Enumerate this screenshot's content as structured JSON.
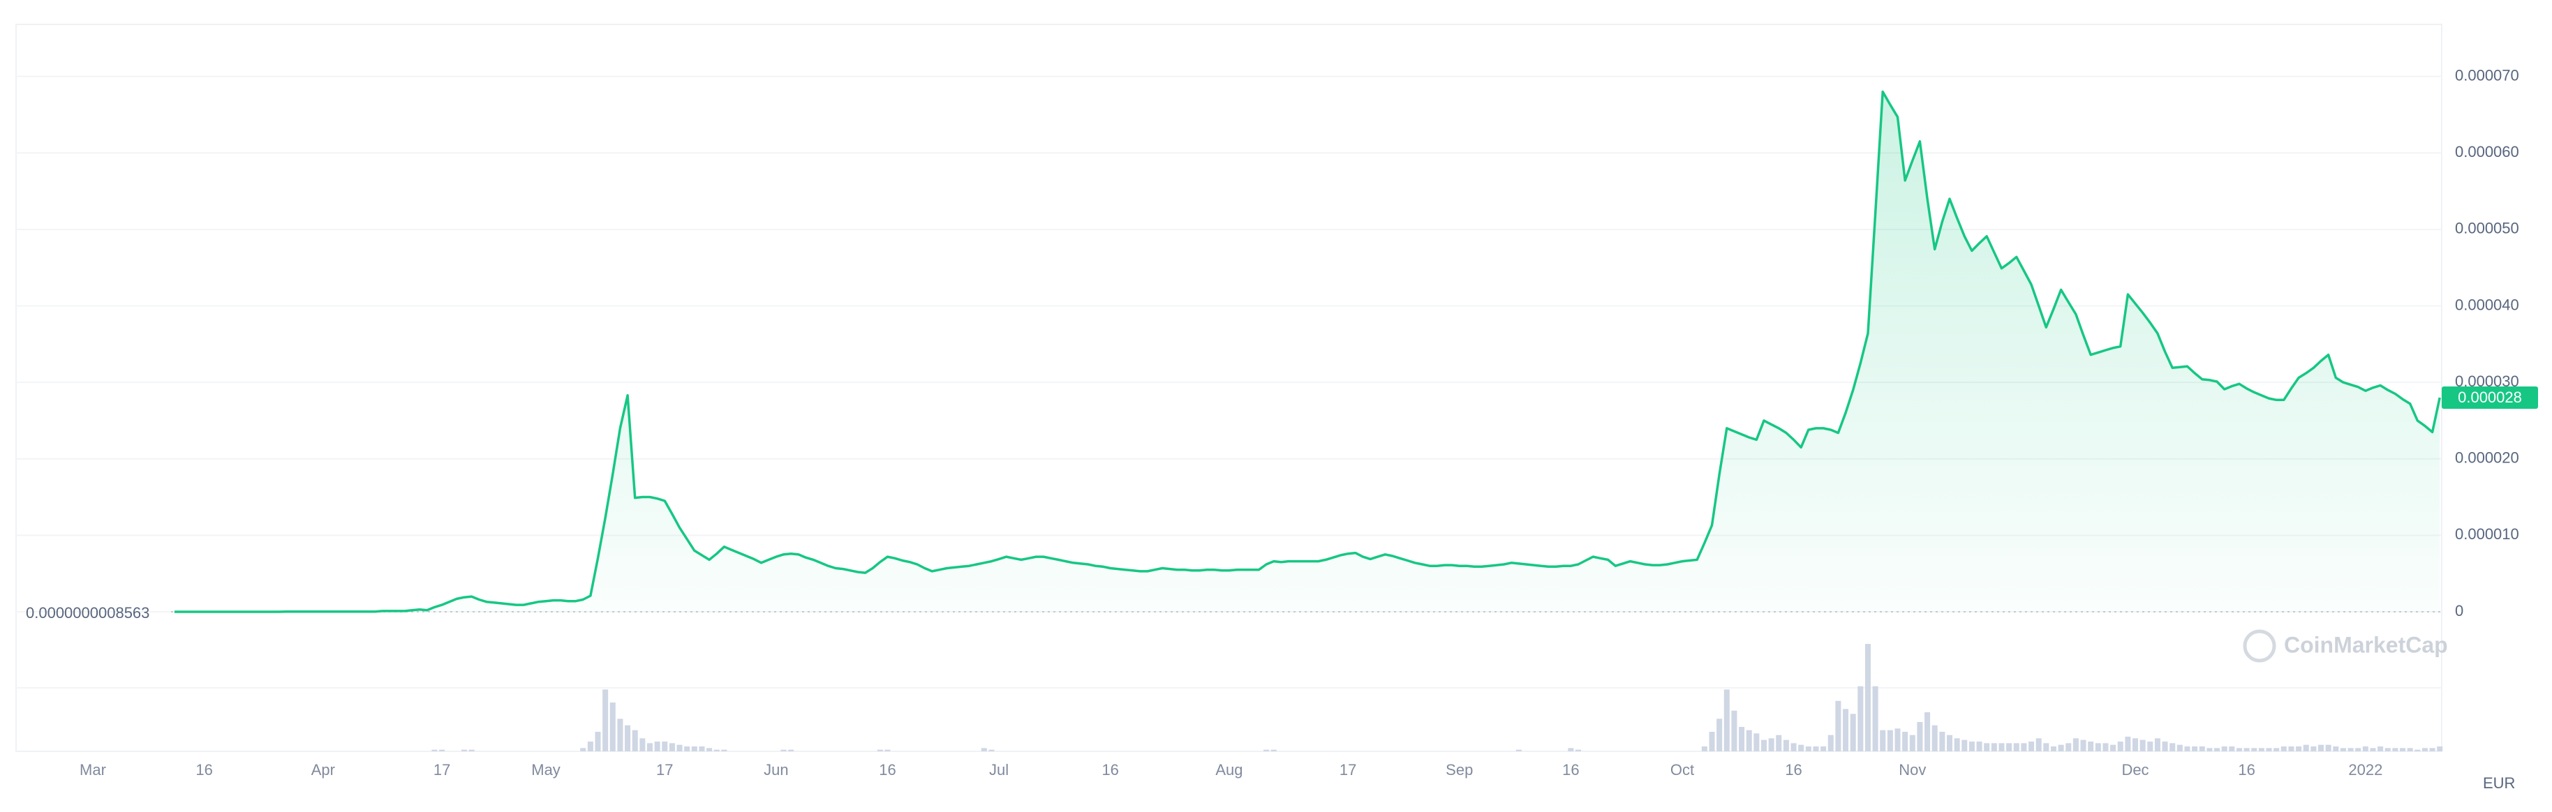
{
  "chart_data": {
    "type": "line",
    "categories": [
      "Mar",
      null,
      null,
      null,
      null,
      null,
      null,
      null,
      null,
      null,
      null,
      null,
      null,
      null,
      null,
      "16",
      null,
      null,
      null,
      null,
      null,
      null,
      null,
      null,
      null,
      null,
      null,
      null,
      null,
      null,
      null,
      "Apr",
      null,
      null,
      null,
      null,
      null,
      null,
      null,
      null,
      null,
      null,
      null,
      null,
      null,
      null,
      null,
      "17",
      null,
      null,
      null,
      null,
      null,
      null,
      null,
      null,
      null,
      null,
      null,
      null,
      null,
      "May",
      null,
      null,
      null,
      null,
      null,
      null,
      null,
      null,
      null,
      null,
      null,
      null,
      null,
      null,
      null,
      "17",
      null,
      null,
      null,
      null,
      null,
      null,
      null,
      null,
      null,
      null,
      null,
      null,
      null,
      null,
      "Jun",
      null,
      null,
      null,
      null,
      null,
      null,
      null,
      null,
      null,
      null,
      null,
      null,
      null,
      null,
      "16",
      null,
      null,
      null,
      null,
      null,
      null,
      null,
      null,
      null,
      null,
      null,
      null,
      null,
      null,
      "Jul",
      null,
      null,
      null,
      null,
      null,
      null,
      null,
      null,
      null,
      null,
      null,
      null,
      null,
      null,
      "16",
      null,
      null,
      null,
      null,
      null,
      null,
      null,
      null,
      null,
      null,
      null,
      null,
      null,
      null,
      null,
      "Aug",
      null,
      null,
      null,
      null,
      null,
      null,
      null,
      null,
      null,
      null,
      null,
      null,
      null,
      null,
      null,
      "17",
      null,
      null,
      null,
      null,
      null,
      null,
      null,
      null,
      null,
      null,
      null,
      null,
      null,
      null,
      "Sep",
      null,
      null,
      null,
      null,
      null,
      null,
      null,
      null,
      null,
      null,
      null,
      null,
      null,
      null,
      "16",
      null,
      null,
      null,
      null,
      null,
      null,
      null,
      null,
      null,
      null,
      null,
      null,
      null,
      null,
      "Oct",
      null,
      null,
      null,
      null,
      null,
      null,
      null,
      null,
      null,
      null,
      null,
      null,
      null,
      null,
      "16",
      null,
      null,
      null,
      null,
      null,
      null,
      null,
      null,
      null,
      null,
      null,
      null,
      null,
      null,
      null,
      "Nov",
      null,
      null,
      null,
      null,
      null,
      null,
      null,
      null,
      null,
      null,
      null,
      null,
      null,
      null,
      null,
      null,
      null,
      null,
      null,
      null,
      null,
      null,
      null,
      null,
      null,
      null,
      null,
      null,
      null,
      "Dec",
      null,
      null,
      null,
      null,
      null,
      null,
      null,
      null,
      null,
      null,
      null,
      null,
      null,
      null,
      "16",
      null,
      null,
      null,
      null,
      null,
      null,
      null,
      null,
      null,
      null,
      null,
      null,
      null,
      null,
      null,
      "2022",
      null,
      null,
      null,
      null,
      null,
      null,
      null,
      null,
      null,
      null
    ],
    "series": [
      {
        "color": "#16c784",
        "values": [
          null,
          null,
          null,
          null,
          null,
          null,
          null,
          null,
          null,
          null,
          null,
          8.563e-10,
          1e-09,
          1e-09,
          1e-09,
          1e-09,
          1e-09,
          1e-09,
          1e-09,
          1e-09,
          1e-09,
          1e-09,
          1e-09,
          1e-09,
          1e-09,
          1e-09,
          2e-08,
          2e-08,
          2e-08,
          2e-08,
          2e-08,
          2e-08,
          2e-08,
          2e-08,
          2e-08,
          2e-08,
          2e-08,
          2e-08,
          2e-08,
          1e-07,
          1e-07,
          1e-07,
          1e-07,
          2e-07,
          3e-07,
          2e-07,
          6e-07,
          9e-07,
          1.3e-06,
          1.7e-06,
          1.9e-06,
          2e-06,
          1.6e-06,
          1.3e-06,
          1.2e-06,
          1.1e-06,
          1e-06,
          9e-07,
          9e-07,
          1.1e-06,
          1.3e-06,
          1.4e-06,
          1.5e-06,
          1.5e-06,
          1.4e-06,
          1.4e-06,
          1.6e-06,
          2.1e-06,
          7e-06,
          1.23e-05,
          1.8e-05,
          2.4e-05,
          2.83e-05,
          1.49e-05,
          1.5e-05,
          1.5e-05,
          1.48e-05,
          1.45e-05,
          1.28e-05,
          1.1e-05,
          9.5e-06,
          8e-06,
          7.4e-06,
          6.8e-06,
          7.6e-06,
          8.5e-06,
          8.1e-06,
          7.7e-06,
          7.3e-06,
          6.9e-06,
          6.4e-06,
          6.8e-06,
          7.2e-06,
          7.5e-06,
          7.6e-06,
          7.5e-06,
          7.1e-06,
          6.8e-06,
          6.4e-06,
          6e-06,
          5.7e-06,
          5.6e-06,
          5.4e-06,
          5.2e-06,
          5.1e-06,
          5.7e-06,
          6.5e-06,
          7.2e-06,
          7e-06,
          6.7e-06,
          6.5e-06,
          6.2e-06,
          5.7e-06,
          5.3e-06,
          5.5e-06,
          5.7e-06,
          5.8e-06,
          5.9e-06,
          6e-06,
          6.2e-06,
          6.4e-06,
          6.6e-06,
          6.9e-06,
          7.2e-06,
          7e-06,
          6.8e-06,
          7e-06,
          7.2e-06,
          7.2e-06,
          7e-06,
          6.8e-06,
          6.6e-06,
          6.4e-06,
          6.3e-06,
          6.2e-06,
          6e-06,
          5.9e-06,
          5.7e-06,
          5.6e-06,
          5.5e-06,
          5.4e-06,
          5.3e-06,
          5.3e-06,
          5.5e-06,
          5.7e-06,
          5.6e-06,
          5.5e-06,
          5.5e-06,
          5.4e-06,
          5.4e-06,
          5.5e-06,
          5.5e-06,
          5.4e-06,
          5.4e-06,
          5.5e-06,
          5.5e-06,
          5.5e-06,
          5.5e-06,
          6.2e-06,
          6.6e-06,
          6.5e-06,
          6.6e-06,
          6.6e-06,
          6.6e-06,
          6.6e-06,
          6.6e-06,
          6.8e-06,
          7.1e-06,
          7.4e-06,
          7.6e-06,
          7.7e-06,
          7.2e-06,
          6.9e-06,
          7.2e-06,
          7.5e-06,
          7.3e-06,
          7e-06,
          6.7e-06,
          6.4e-06,
          6.2e-06,
          6e-06,
          6e-06,
          6.1e-06,
          6.1e-06,
          6e-06,
          6e-06,
          5.9e-06,
          5.9e-06,
          6e-06,
          6.1e-06,
          6.2e-06,
          6.4e-06,
          6.3e-06,
          6.2e-06,
          6.1e-06,
          6e-06,
          5.9e-06,
          5.9e-06,
          6e-06,
          6e-06,
          6.2e-06,
          6.7e-06,
          7.2e-06,
          7e-06,
          6.8e-06,
          6e-06,
          6.3e-06,
          6.6e-06,
          6.4e-06,
          6.2e-06,
          6.1e-06,
          6.1e-06,
          6.2e-06,
          6.4e-06,
          6.6e-06,
          6.7e-06,
          6.8e-06,
          9e-06,
          1.13e-05,
          1.8e-05,
          2.4e-05,
          2.36e-05,
          2.32e-05,
          2.28e-05,
          2.25e-05,
          2.5e-05,
          2.45e-05,
          2.4e-05,
          2.34e-05,
          2.25e-05,
          2.15e-05,
          2.38e-05,
          2.4e-05,
          2.4e-05,
          2.38e-05,
          2.34e-05,
          2.6e-05,
          2.9e-05,
          3.25e-05,
          3.64e-05,
          5.2e-05,
          6.8e-05,
          6.63e-05,
          6.47e-05,
          5.64e-05,
          5.9e-05,
          6.15e-05,
          5.4e-05,
          4.74e-05,
          5.1e-05,
          5.4e-05,
          5.15e-05,
          4.91e-05,
          4.72e-05,
          4.82e-05,
          4.91e-05,
          4.7e-05,
          4.49e-05,
          4.56e-05,
          4.64e-05,
          4.46e-05,
          4.28e-05,
          4e-05,
          3.72e-05,
          3.96e-05,
          4.21e-05,
          4.05e-05,
          3.89e-05,
          3.62e-05,
          3.36e-05,
          3.39e-05,
          3.42e-05,
          3.45e-05,
          3.47e-05,
          4.15e-05,
          4.03e-05,
          3.91e-05,
          3.78e-05,
          3.64e-05,
          3.4e-05,
          3.19e-05,
          3.2e-05,
          3.21e-05,
          3.12e-05,
          3.04e-05,
          3.03e-05,
          3.01e-05,
          2.91e-05,
          2.95e-05,
          2.98e-05,
          2.92e-05,
          2.87e-05,
          2.83e-05,
          2.79e-05,
          2.77e-05,
          2.77e-05,
          2.92e-05,
          3.06e-05,
          3.12e-05,
          3.19e-05,
          3.28e-05,
          3.36e-05,
          3.06e-05,
          3e-05,
          2.97e-05,
          2.94e-05,
          2.89e-05,
          2.93e-05,
          2.96e-05,
          2.9e-05,
          2.85e-05,
          2.78e-05,
          2.72e-05,
          2.5e-05,
          2.43e-05,
          2.35e-05,
          2.8e-05
        ]
      }
    ],
    "volume": {
      "color": "#cfd6e4",
      "values": [
        null,
        null,
        null,
        null,
        null,
        null,
        null,
        null,
        null,
        null,
        null,
        0,
        0,
        0,
        0,
        0,
        0,
        0,
        0,
        0,
        0,
        0,
        0,
        0,
        0,
        0,
        0,
        0,
        0,
        0,
        0,
        0,
        0,
        0,
        0,
        0,
        0,
        0,
        0,
        0,
        0,
        0,
        0,
        0,
        0,
        0,
        1,
        1,
        0,
        0,
        1,
        1,
        0,
        0,
        0,
        0,
        0,
        0,
        0,
        0,
        0,
        0,
        0,
        0,
        0,
        0,
        2,
        6,
        12,
        38,
        30,
        20,
        16,
        13,
        8,
        5,
        6,
        6,
        5,
        4,
        3,
        3,
        3,
        2,
        1,
        1,
        0,
        0,
        0,
        0,
        0,
        0,
        0,
        1,
        1,
        0,
        0,
        0,
        0,
        0,
        0,
        0,
        0,
        0,
        0,
        0,
        1,
        1,
        0,
        0,
        0,
        0,
        0,
        0,
        0,
        0,
        0,
        0,
        0,
        0,
        2,
        1,
        0,
        0,
        0,
        0,
        0,
        0,
        0,
        0,
        0,
        0,
        0,
        0,
        0,
        0,
        0,
        0,
        0,
        0,
        0,
        0,
        0,
        0,
        0,
        0,
        0,
        0,
        0,
        0,
        0,
        0,
        0,
        0,
        0,
        0,
        0,
        0,
        1,
        1,
        0,
        0,
        0,
        0,
        0,
        0,
        0,
        0,
        0,
        0,
        0,
        0,
        0,
        0,
        0,
        0,
        0,
        0,
        0,
        0,
        0,
        0,
        0,
        0,
        0,
        0,
        0,
        0,
        0,
        0,
        0,
        0,
        1,
        0,
        0,
        0,
        0,
        0,
        0,
        2,
        1,
        0,
        0,
        0,
        0,
        0,
        0,
        0,
        0,
        0,
        0,
        0,
        0,
        0,
        0,
        0,
        0,
        3,
        12,
        20,
        38,
        25,
        15,
        13,
        11,
        7,
        8,
        10,
        7,
        5,
        4,
        3,
        3,
        3,
        10,
        31,
        26,
        23,
        40,
        66,
        40,
        13,
        13,
        14,
        12,
        10,
        18,
        24,
        16,
        12,
        10,
        8,
        7,
        6,
        6,
        5,
        5,
        5,
        5,
        5,
        5,
        6,
        8,
        5,
        3,
        4,
        5,
        8,
        7,
        6,
        5,
        5,
        4,
        6,
        9,
        8,
        7,
        6,
        8,
        6,
        5,
        4,
        3,
        3,
        3,
        2,
        2,
        3,
        3,
        2,
        2,
        2,
        2,
        2,
        2,
        3,
        3,
        3,
        4,
        3,
        4,
        4,
        3,
        2,
        2,
        2,
        3,
        2,
        3,
        2,
        2,
        2,
        2,
        1,
        2,
        2,
        3
      ]
    },
    "ylim": [
      0,
      7.68e-05
    ],
    "yticks": [
      0,
      {
        "value": 1e-05,
        "label": "0.000010"
      },
      {
        "value": 2e-05,
        "label": "0.000020"
      },
      {
        "value": 3e-05,
        "label": "0.000030"
      },
      {
        "value": 4e-05,
        "label": "0.000040"
      },
      {
        "value": 5e-05,
        "label": "0.000050"
      },
      {
        "value": 6e-05,
        "label": "0.000060"
      },
      {
        "value": 7e-05,
        "label": "0.000070"
      }
    ],
    "grid": true,
    "start_price": {
      "value": 8.563e-10,
      "label": "0.0000000008563"
    },
    "current_price": 2.8e-05,
    "watermark": "CoinMarketCap",
    "currency": "EUR"
  }
}
